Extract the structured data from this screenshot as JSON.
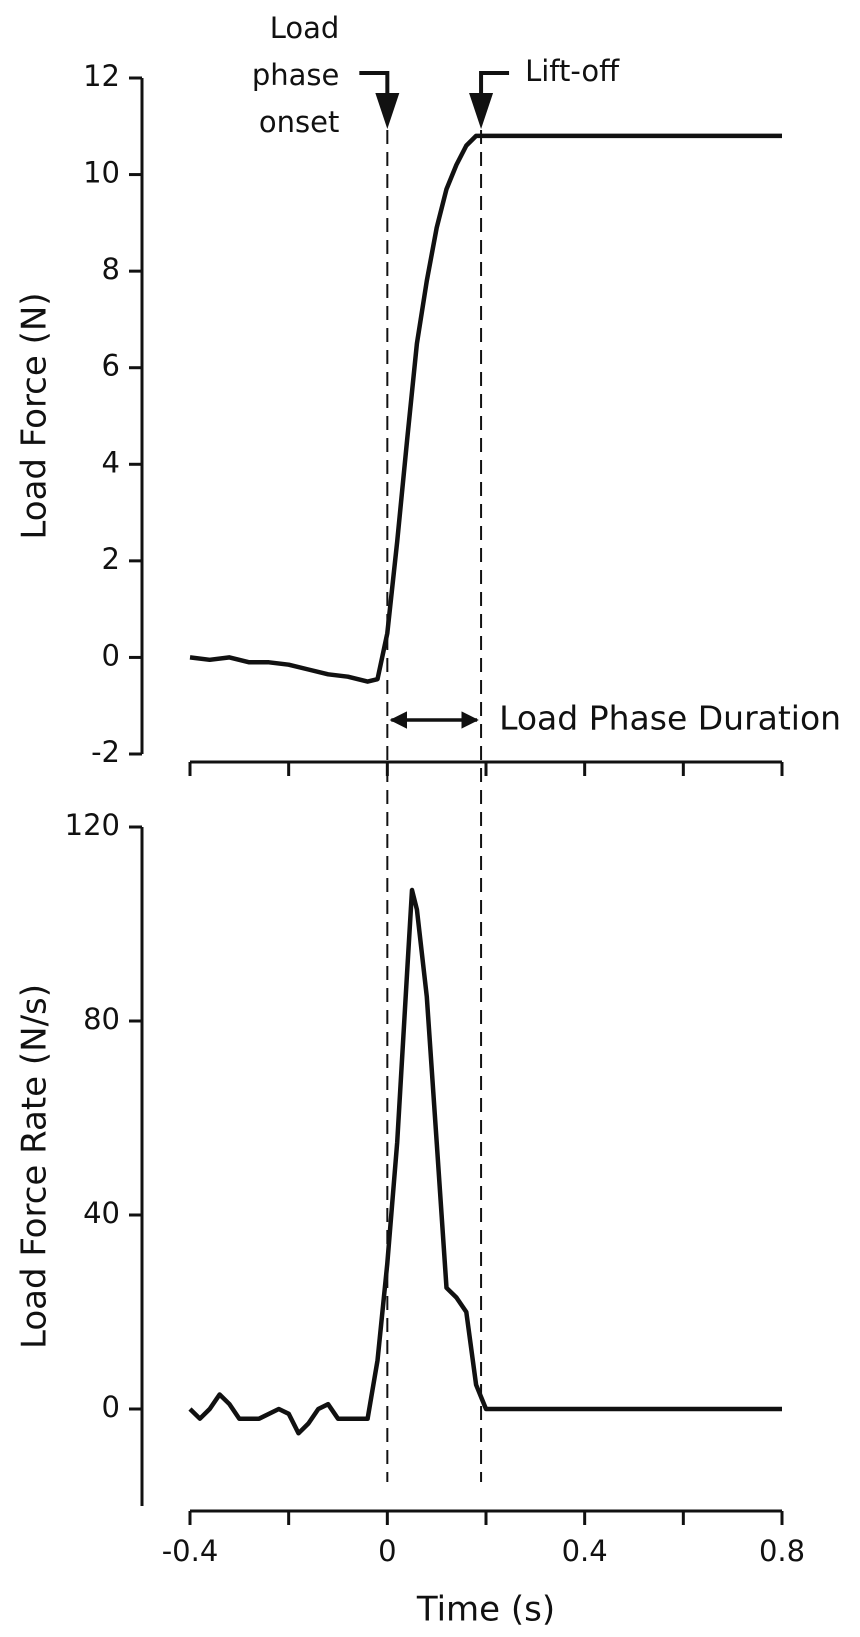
{
  "chart_data": [
    {
      "type": "line",
      "ylabel": "Load Force (N)",
      "color": "#111111",
      "x": [
        -0.4,
        -0.36,
        -0.32,
        -0.28,
        -0.24,
        -0.2,
        -0.16,
        -0.12,
        -0.08,
        -0.04,
        -0.02,
        0,
        0.02,
        0.04,
        0.06,
        0.08,
        0.1,
        0.12,
        0.14,
        0.16,
        0.18,
        0.2,
        0.3,
        0.4,
        0.5,
        0.6,
        0.7,
        0.8
      ],
      "values": [
        0,
        -0.05,
        0,
        -0.1,
        -0.1,
        -0.15,
        -0.25,
        -0.35,
        -0.4,
        -0.5,
        -0.45,
        0.5,
        2.4,
        4.5,
        6.5,
        7.8,
        8.9,
        9.7,
        10.2,
        10.6,
        10.8,
        10.8,
        10.8,
        10.8,
        10.8,
        10.8,
        10.8,
        10.8
      ],
      "xlim": [
        -0.4,
        0.8
      ],
      "ylim": [
        -2,
        12
      ],
      "yticks": [
        -2,
        0,
        2,
        4,
        6,
        8,
        10,
        12
      ],
      "xticks": [
        -0.4,
        -0.2,
        0,
        0.2,
        0.4,
        0.6,
        0.8
      ],
      "xtick_labels": false,
      "markers": [
        {
          "x": 0,
          "label": [
            "Load",
            "phase",
            "onset"
          ]
        },
        {
          "x": 0.19,
          "label": [
            "Lift-off"
          ]
        }
      ],
      "span_label": "Load Phase Duration"
    },
    {
      "type": "line",
      "ylabel": "Load Force Rate (N/s)",
      "xlabel": "Time (s)",
      "color": "#111111",
      "x": [
        -0.4,
        -0.38,
        -0.36,
        -0.34,
        -0.32,
        -0.3,
        -0.26,
        -0.22,
        -0.2,
        -0.18,
        -0.16,
        -0.14,
        -0.12,
        -0.1,
        -0.06,
        -0.04,
        -0.02,
        0,
        0.02,
        0.04,
        0.05,
        0.06,
        0.08,
        0.1,
        0.12,
        0.14,
        0.16,
        0.18,
        0.2,
        0.3,
        0.4,
        0.5,
        0.6,
        0.7,
        0.8
      ],
      "values": [
        0,
        -2,
        0,
        3,
        1,
        -2,
        -2,
        0,
        -1,
        -5,
        -3,
        0,
        1,
        -2,
        -2,
        -2,
        10,
        30,
        55,
        90,
        107,
        103,
        85,
        55,
        25,
        23,
        20,
        5,
        0,
        0,
        0,
        0,
        0,
        0,
        0
      ],
      "xlim": [
        -0.4,
        0.8
      ],
      "ylim": [
        -20,
        120
      ],
      "yticks": [
        0,
        40,
        80,
        120
      ],
      "xticks": [
        -0.4,
        0,
        0.4,
        0.8
      ],
      "xminorticks": [
        -0.2,
        0.2,
        0.6
      ],
      "xtick_labels": true
    }
  ]
}
